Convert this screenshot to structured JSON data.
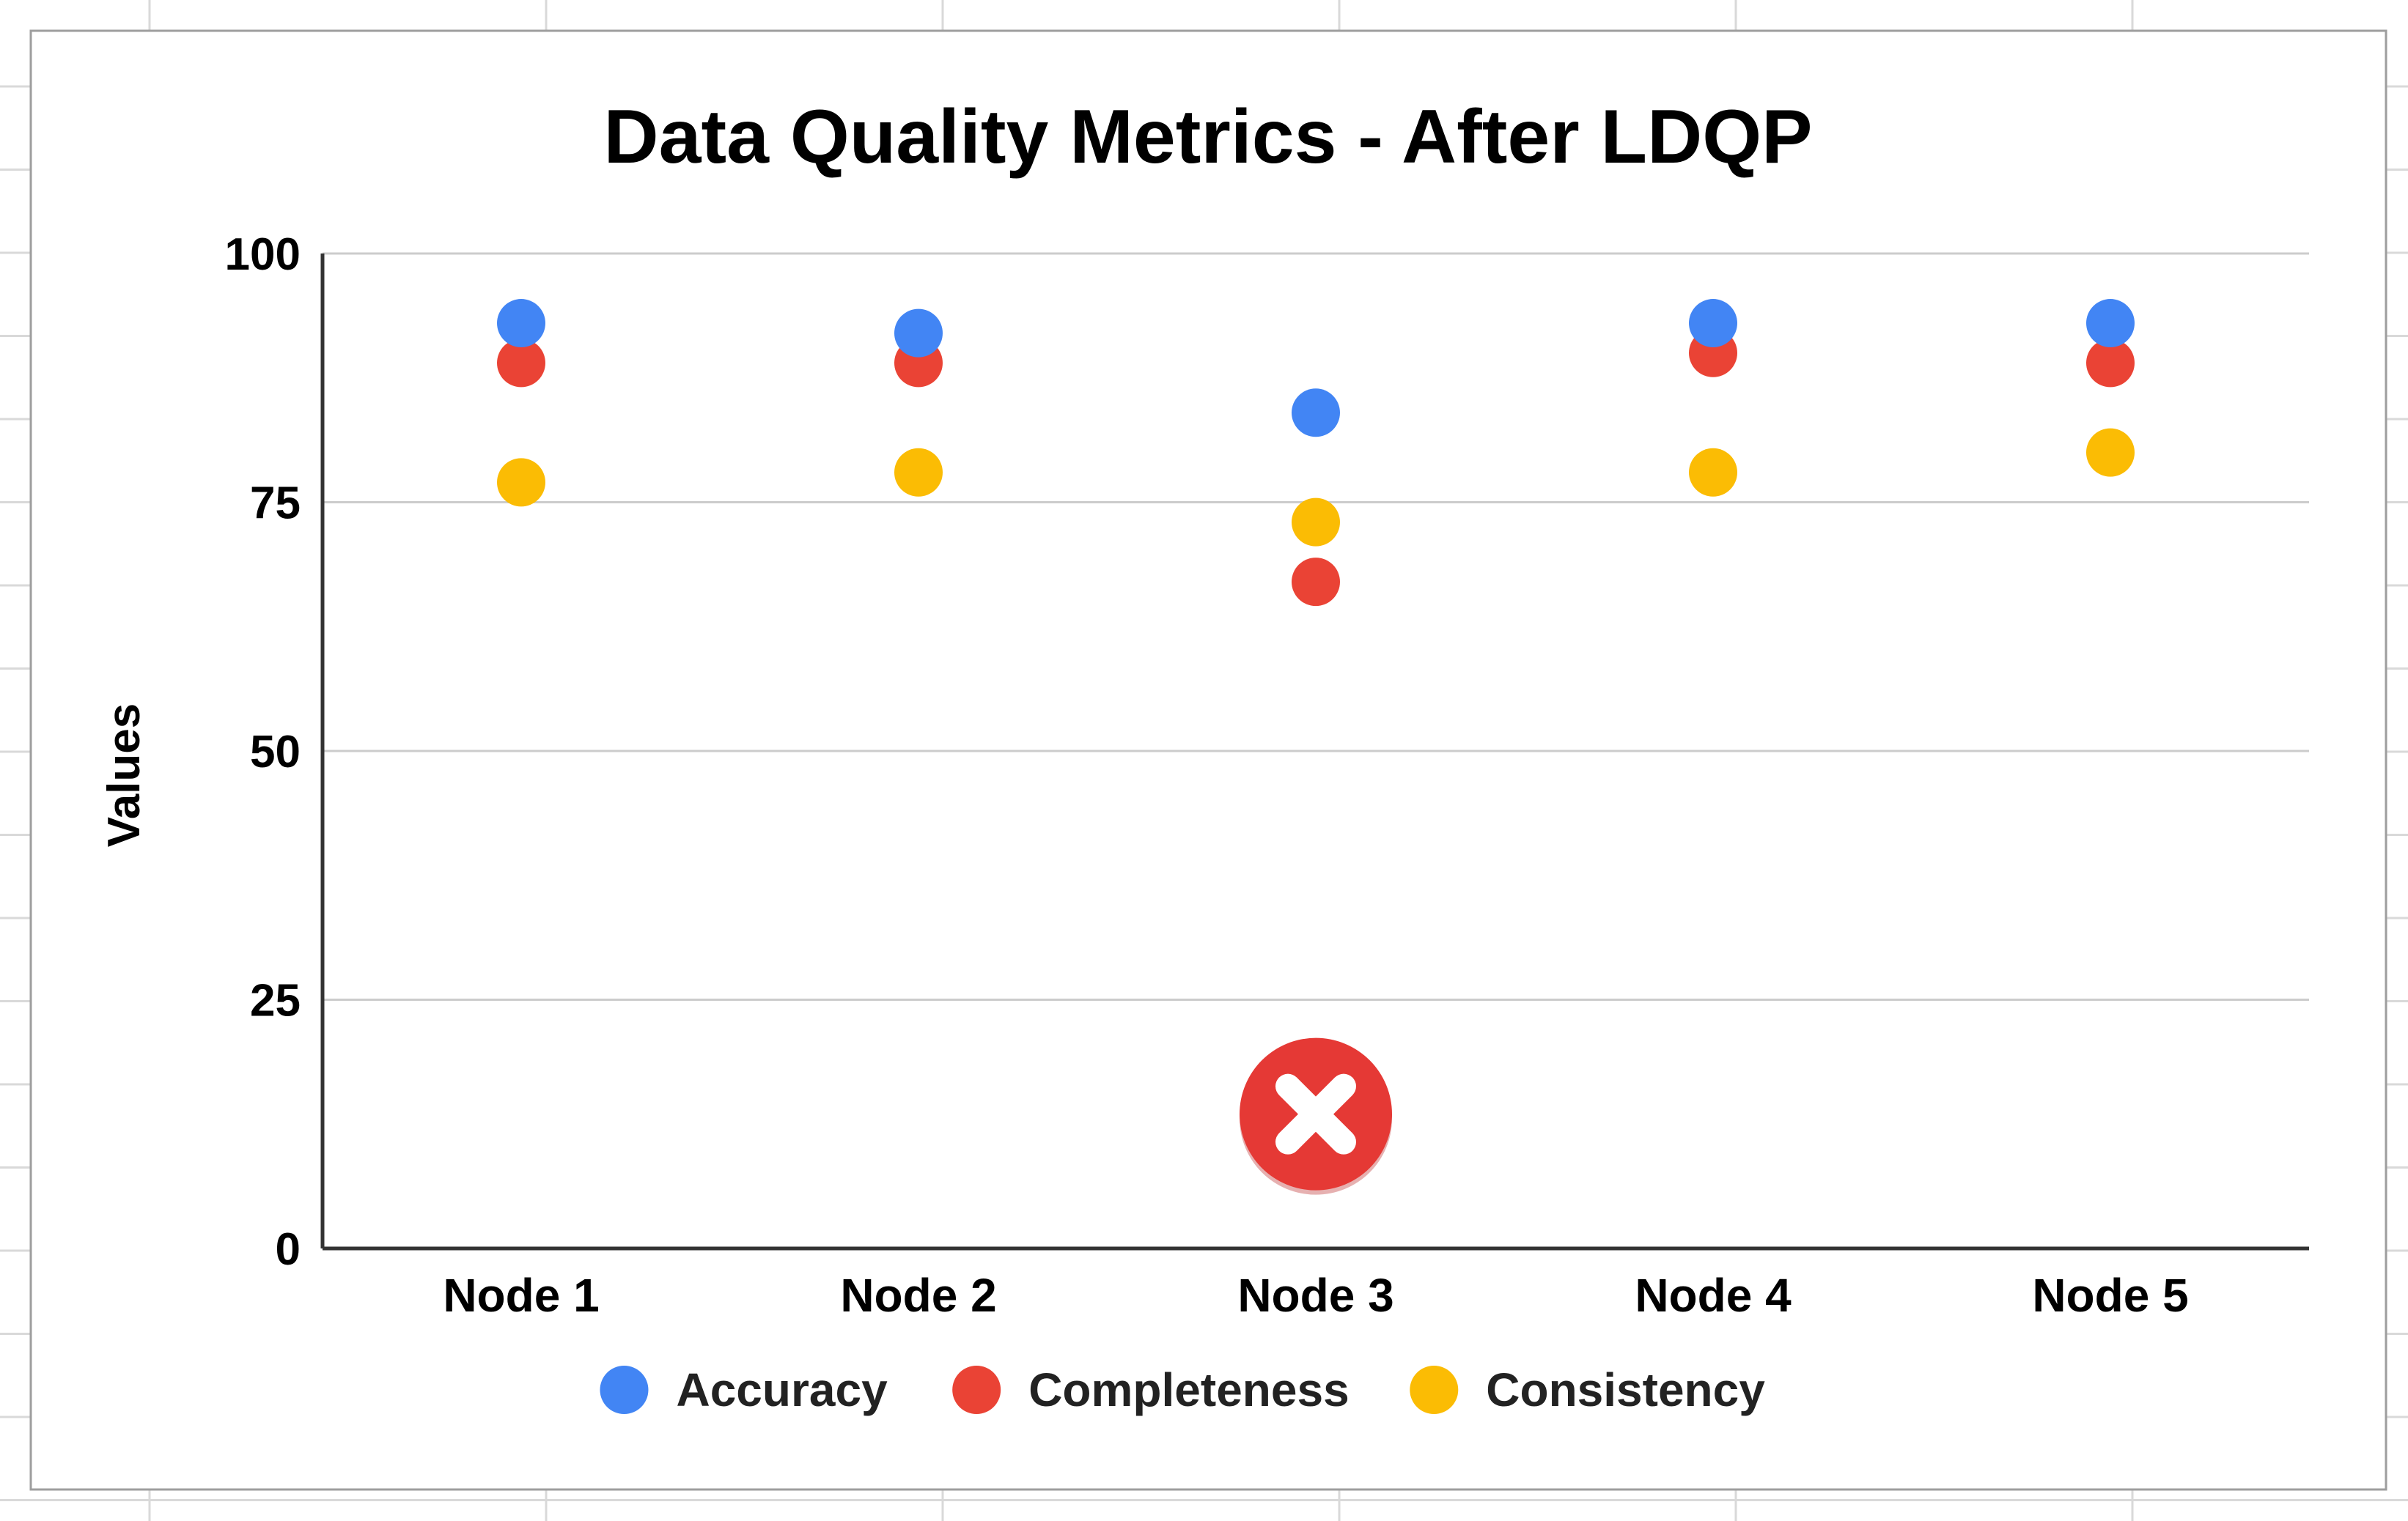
{
  "chart_data": {
    "type": "scatter",
    "title": "Data Quality Metrics - After LDQP",
    "xlabel": "",
    "ylabel": "Values",
    "categories": [
      "Node 1",
      "Node 2",
      "Node 3",
      "Node 4",
      "Node 5"
    ],
    "ylim": [
      0,
      100
    ],
    "yticks": [
      0,
      25,
      50,
      75,
      100
    ],
    "grid": true,
    "legend_position": "bottom",
    "series": [
      {
        "name": "Accuracy",
        "color": "#4285F4",
        "values": [
          93,
          92,
          84,
          93,
          93
        ]
      },
      {
        "name": "Completeness",
        "color": "#EA4335",
        "values": [
          89,
          89,
          67,
          90,
          89
        ]
      },
      {
        "name": "Consistency",
        "color": "#FBBC04",
        "values": [
          77,
          78,
          73,
          78,
          80
        ]
      }
    ],
    "annotation": {
      "icon": "error-x-icon",
      "category": "Node 3",
      "value": 13.5,
      "color": "#E53935"
    }
  }
}
